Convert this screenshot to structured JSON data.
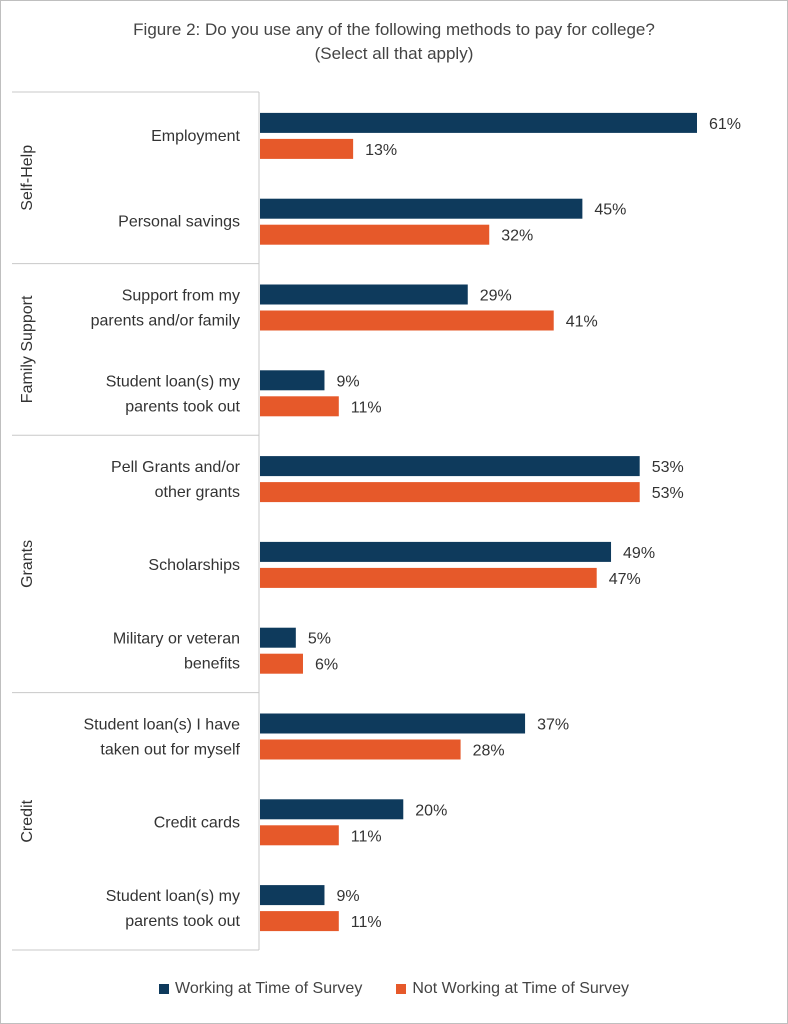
{
  "chart_data": {
    "type": "bar",
    "orientation": "horizontal",
    "title": "Figure 2: Do you use any of the following methods to pay for college?",
    "subtitle": "(Select all that apply)",
    "groups": [
      {
        "label": "Self-Help",
        "categories": [
          0,
          1
        ]
      },
      {
        "label": "Family Support",
        "categories": [
          2,
          3
        ]
      },
      {
        "label": "Grants",
        "categories": [
          4,
          5,
          6
        ]
      },
      {
        "label": "Credit",
        "categories": [
          7,
          8,
          9
        ]
      }
    ],
    "categories": [
      [
        "Employment"
      ],
      [
        "Personal savings"
      ],
      [
        "Support from my",
        "parents and/or family"
      ],
      [
        "Student loan(s) my",
        "parents took out"
      ],
      [
        "Pell Grants and/or",
        "other grants"
      ],
      [
        "Scholarships"
      ],
      [
        "Military or veteran",
        "benefits"
      ],
      [
        "Student loan(s) I have",
        "taken out for myself"
      ],
      [
        "Credit cards"
      ],
      [
        "Student loan(s) my",
        "parents took out"
      ]
    ],
    "series": [
      {
        "name": "Working at Time of Survey",
        "color": "#0e3a5c",
        "values": [
          61,
          45,
          29,
          9,
          53,
          49,
          5,
          37,
          20,
          9
        ]
      },
      {
        "name": "Not Working at Time of Survey",
        "color": "#e6592a",
        "values": [
          13,
          32,
          41,
          11,
          53,
          47,
          6,
          28,
          11,
          11
        ]
      }
    ],
    "value_suffix": "%",
    "xlim": [
      0,
      61
    ],
    "legend_position": "bottom",
    "grid": false
  }
}
